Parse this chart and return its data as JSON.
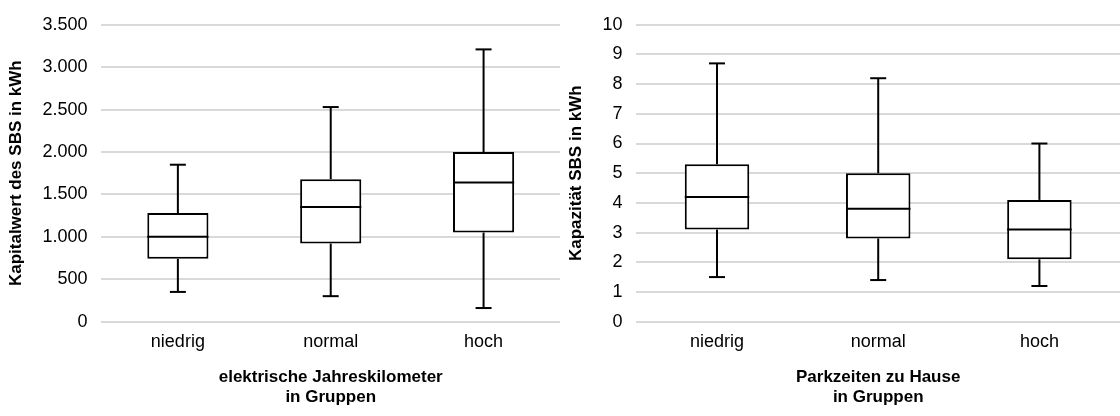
{
  "chart_data": [
    {
      "type": "box",
      "xlabel": "elektrische Jahreskilometer\nin Gruppen",
      "ylabel": "Kapitalwert des SBS in kWh",
      "categories": [
        "niedrig",
        "normal",
        "hoch"
      ],
      "boxes": [
        {
          "low": 350,
          "q1": 740,
          "median": 1000,
          "q3": 1280,
          "high": 1850
        },
        {
          "low": 300,
          "q1": 920,
          "median": 1350,
          "q3": 1680,
          "high": 2530
        },
        {
          "low": 160,
          "q1": 1050,
          "median": 1640,
          "q3": 2000,
          "high": 3210
        }
      ],
      "color": "#000000",
      "ylim": [
        0,
        3500
      ],
      "yticks": [
        0,
        500,
        {
          "value": 1000,
          "label": "1.000"
        },
        {
          "value": 1500,
          "label": "1.500"
        },
        {
          "value": 2000,
          "label": "2.000"
        },
        {
          "value": 2500,
          "label": "2.500"
        },
        {
          "value": 3000,
          "label": "3.000"
        },
        {
          "value": 3500,
          "label": "3.500"
        }
      ],
      "grid": "y",
      "legend": false
    },
    {
      "type": "box",
      "xlabel": "Parkzeiten zu Hause\nin Gruppen",
      "ylabel": "Kapazität SBS in kWh",
      "categories": [
        "niedrig",
        "normal",
        "hoch"
      ],
      "boxes": [
        {
          "low": 1.5,
          "q1": 3.1,
          "median": 4.2,
          "q3": 5.3,
          "high": 8.7
        },
        {
          "low": 1.4,
          "q1": 2.8,
          "median": 3.8,
          "q3": 5.0,
          "high": 8.2
        },
        {
          "low": 1.2,
          "q1": 2.1,
          "median": 3.1,
          "q3": 4.1,
          "high": 6.0
        }
      ],
      "color": "#000000",
      "ylim": [
        0,
        10
      ],
      "yticks": [
        0,
        1,
        2,
        3,
        4,
        5,
        6,
        7,
        8,
        9,
        10
      ],
      "grid": "y",
      "legend": false
    }
  ]
}
